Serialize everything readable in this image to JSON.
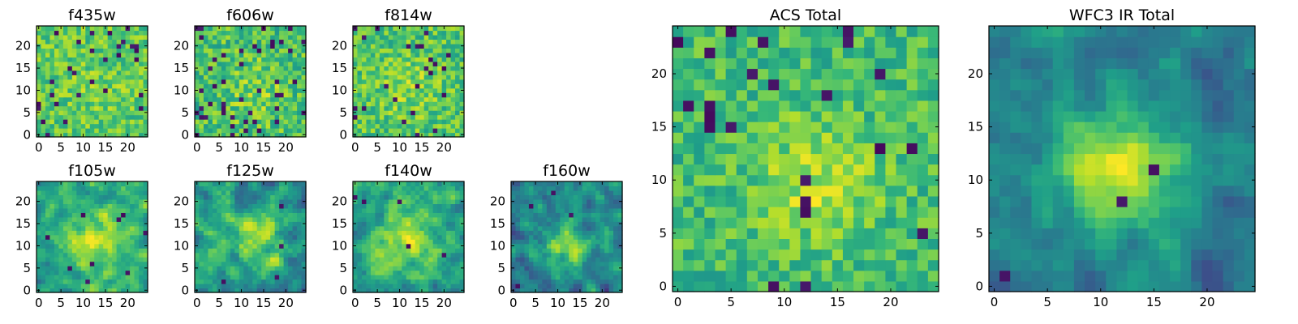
{
  "chart_data": {
    "type": "heatmap",
    "colormap": "viridis",
    "grid": false,
    "colors": {
      "frame": "#000000",
      "background": "#ffffff"
    },
    "panels": [
      {
        "id": "f435w",
        "title": "f435w",
        "nx": 25,
        "ny": 25,
        "xlim": [
          -0.5,
          24.5
        ],
        "ylim": [
          -0.5,
          24.5
        ],
        "xticks": [
          0,
          5,
          10,
          15,
          20
        ],
        "yticks": [
          0,
          5,
          10,
          15,
          20
        ],
        "pattern": "noise",
        "base": 0.74,
        "noise": 0.16,
        "peak": 0.05,
        "center": [
          13,
          11
        ],
        "sigma": 5,
        "dark_fraction": 0.05,
        "seed": 11
      },
      {
        "id": "f606w",
        "title": "f606w",
        "nx": 25,
        "ny": 25,
        "xlim": [
          -0.5,
          24.5
        ],
        "ylim": [
          -0.5,
          24.5
        ],
        "xticks": [
          0,
          5,
          10,
          15,
          20
        ],
        "yticks": [
          0,
          5,
          10,
          15,
          20
        ],
        "pattern": "noise",
        "base": 0.7,
        "noise": 0.18,
        "peak": 0.1,
        "center": [
          13,
          10
        ],
        "sigma": 5,
        "dark_fraction": 0.06,
        "seed": 23
      },
      {
        "id": "f814w",
        "title": "f814w",
        "nx": 25,
        "ny": 25,
        "xlim": [
          -0.5,
          24.5
        ],
        "ylim": [
          -0.5,
          24.5
        ],
        "xticks": [
          0,
          5,
          10,
          15,
          20
        ],
        "yticks": [
          0,
          5,
          10,
          15,
          20
        ],
        "pattern": "noise",
        "base": 0.72,
        "noise": 0.17,
        "peak": 0.1,
        "center": [
          12,
          11
        ],
        "sigma": 5,
        "dark_fraction": 0.04,
        "seed": 37
      },
      {
        "id": "f105w",
        "title": "f105w",
        "nx": 25,
        "ny": 25,
        "xlim": [
          -0.5,
          24.5
        ],
        "ylim": [
          -0.5,
          24.5
        ],
        "xticks": [
          0,
          5,
          10,
          15,
          20
        ],
        "yticks": [
          0,
          5,
          10,
          15,
          20
        ],
        "pattern": "smooth",
        "base": 0.58,
        "noise": 0.16,
        "peak": 0.35,
        "center": [
          13,
          11
        ],
        "sigma": 5,
        "dark_fraction": 0.01,
        "seed": 41
      },
      {
        "id": "f125w",
        "title": "f125w",
        "nx": 25,
        "ny": 25,
        "xlim": [
          -0.5,
          24.5
        ],
        "ylim": [
          -0.5,
          24.5
        ],
        "xticks": [
          0,
          5,
          10,
          15,
          20
        ],
        "yticks": [
          0,
          5,
          10,
          15,
          20
        ],
        "pattern": "smooth",
        "base": 0.55,
        "noise": 0.18,
        "peak": 0.3,
        "center": [
          14,
          12
        ],
        "sigma": 4,
        "dark_fraction": 0.01,
        "seed": 53
      },
      {
        "id": "f140w",
        "title": "f140w",
        "nx": 25,
        "ny": 25,
        "xlim": [
          -0.5,
          24.5
        ],
        "ylim": [
          -0.5,
          24.5
        ],
        "xticks": [
          0,
          5,
          10,
          15,
          20
        ],
        "yticks": [
          0,
          5,
          10,
          15,
          20
        ],
        "pattern": "smooth",
        "base": 0.58,
        "noise": 0.16,
        "peak": 0.3,
        "center": [
          11,
          12
        ],
        "sigma": 5,
        "dark_fraction": 0.01,
        "seed": 67
      },
      {
        "id": "f160w",
        "title": "f160w",
        "nx": 25,
        "ny": 25,
        "xlim": [
          -0.5,
          24.5
        ],
        "ylim": [
          -0.5,
          24.5
        ],
        "xticks": [
          0,
          5,
          10,
          15,
          20
        ],
        "yticks": [
          0,
          5,
          10,
          15,
          20
        ],
        "pattern": "smooth",
        "base": 0.45,
        "noise": 0.17,
        "peak": 0.38,
        "center": [
          12,
          10
        ],
        "sigma": 4,
        "dark_fraction": 0.01,
        "seed": 79
      },
      {
        "id": "acs-total",
        "title": "ACS Total",
        "nx": 25,
        "ny": 25,
        "xlim": [
          -0.5,
          24.5
        ],
        "ylim": [
          -0.5,
          24.5
        ],
        "xticks": [
          0,
          5,
          10,
          15,
          20
        ],
        "yticks": [
          0,
          5,
          10,
          15,
          20
        ],
        "pattern": "noise",
        "base": 0.68,
        "noise": 0.15,
        "peak": 0.2,
        "center": [
          13,
          10
        ],
        "sigma": 4,
        "dark_fraction": 0.04,
        "seed": 97
      },
      {
        "id": "wfc3-ir-total",
        "title": "WFC3 IR Total",
        "nx": 25,
        "ny": 25,
        "xlim": [
          -0.5,
          24.5
        ],
        "ylim": [
          -0.5,
          24.5
        ],
        "xticks": [
          0,
          5,
          10,
          15,
          20
        ],
        "yticks": [
          0,
          5,
          10,
          15,
          20
        ],
        "pattern": "smooth",
        "base": 0.42,
        "noise": 0.12,
        "peak": 0.55,
        "center": [
          12,
          11
        ],
        "sigma": 4,
        "dark_fraction": 0.015,
        "seed": 131
      }
    ]
  }
}
